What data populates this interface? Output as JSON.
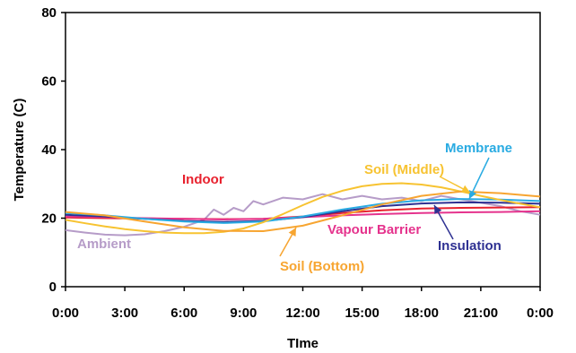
{
  "chart_data": {
    "type": "line",
    "title": "",
    "xlabel": "TIme",
    "ylabel": "Temperature (C)",
    "xlim": [
      0,
      24
    ],
    "ylim": [
      0,
      80
    ],
    "x_ticks": [
      "0:00",
      "3:00",
      "6:00",
      "9:00",
      "12:00",
      "15:00",
      "18:00",
      "21:00",
      "0:00"
    ],
    "y_ticks": [
      "0",
      "20",
      "40",
      "60",
      "80"
    ],
    "grid": false,
    "legend": "inline labels",
    "series": [
      {
        "name": "Ambient",
        "color": "#b69cc8",
        "x": [
          0,
          1,
          2,
          3,
          4,
          5,
          6,
          7,
          7.5,
          8,
          8.5,
          9,
          9.5,
          10,
          11,
          12,
          13,
          14,
          15,
          16,
          17,
          18,
          19,
          20,
          21,
          22,
          23,
          24
        ],
        "y": [
          16.5,
          15.8,
          15.2,
          15.0,
          15.3,
          16.2,
          17.5,
          19.5,
          22.5,
          21.0,
          23.0,
          22.0,
          25.0,
          24.0,
          26.0,
          25.5,
          27.0,
          25.5,
          26.5,
          25.5,
          26.0,
          25.0,
          26.5,
          25.5,
          24.5,
          23.5,
          22.0,
          21.0
        ]
      },
      {
        "name": "Indoor",
        "color": "#e8212e",
        "x": [
          0,
          2,
          4,
          6,
          8,
          10,
          12,
          14,
          16,
          18,
          20,
          22,
          24
        ],
        "y": [
          20.2,
          20.0,
          19.9,
          19.8,
          19.7,
          19.8,
          20.5,
          21.5,
          22.3,
          22.8,
          23.0,
          23.1,
          23.2
        ]
      },
      {
        "name": "Vapour Barrier",
        "color": "#e5338d",
        "x": [
          0,
          2,
          4,
          6,
          8,
          10,
          12,
          14,
          16,
          18,
          20,
          22,
          24
        ],
        "y": [
          20.5,
          20.3,
          20.0,
          19.8,
          19.6,
          19.8,
          20.3,
          20.8,
          21.2,
          21.5,
          21.7,
          21.8,
          22.0
        ]
      },
      {
        "name": "Insulation",
        "color": "#2e3192",
        "x": [
          0,
          2,
          4,
          6,
          8,
          10,
          12,
          14,
          16,
          18,
          20,
          22,
          24
        ],
        "y": [
          21.0,
          20.5,
          19.8,
          19.2,
          18.9,
          19.2,
          20.3,
          22.0,
          23.5,
          24.3,
          24.6,
          24.5,
          24.2
        ]
      },
      {
        "name": "Membrane",
        "color": "#29abe2",
        "x": [
          0,
          2,
          4,
          6,
          8,
          10,
          12,
          14,
          16,
          18,
          20,
          22,
          24
        ],
        "y": [
          21.5,
          20.8,
          19.8,
          19.0,
          18.6,
          19.0,
          20.5,
          22.5,
          24.2,
          25.2,
          25.6,
          25.4,
          25.0
        ]
      },
      {
        "name": "Soil (Middle)",
        "color": "#f7c331",
        "x": [
          0,
          1,
          2,
          3,
          4,
          5,
          6,
          7,
          8,
          9,
          10,
          11,
          12,
          13,
          14,
          15,
          16,
          17,
          18,
          19,
          20,
          21,
          22,
          23,
          24
        ],
        "y": [
          19.5,
          18.5,
          17.6,
          16.8,
          16.2,
          15.8,
          15.6,
          15.6,
          16.0,
          17.0,
          18.8,
          21.2,
          23.8,
          26.2,
          28.0,
          29.3,
          30.0,
          30.2,
          29.8,
          29.0,
          27.8,
          26.5,
          25.3,
          24.2,
          23.2
        ]
      },
      {
        "name": "Soil (Bottom)",
        "color": "#f7a531",
        "x": [
          0,
          2,
          4,
          6,
          8,
          10,
          12,
          14,
          16,
          18,
          20,
          22,
          24
        ],
        "y": [
          21.8,
          20.8,
          19.0,
          17.3,
          16.3,
          16.2,
          17.8,
          20.8,
          24.0,
          26.5,
          27.8,
          27.3,
          26.3
        ]
      }
    ],
    "annotations": [
      {
        "text": "Ambient",
        "color": "#b69cc8"
      },
      {
        "text": "Indoor",
        "color": "#e8212e"
      },
      {
        "text": "Vapour Barrier",
        "color": "#e5338d"
      },
      {
        "text": "Insulation",
        "color": "#2e3192"
      },
      {
        "text": "Membrane",
        "color": "#29abe2"
      },
      {
        "text": "Soil (Middle)",
        "color": "#f7c331"
      },
      {
        "text": "Soil (Bottom)",
        "color": "#f7a531"
      }
    ]
  }
}
